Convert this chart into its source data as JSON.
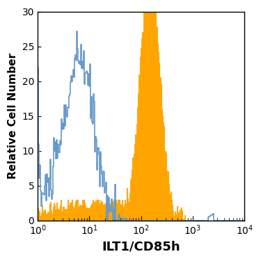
{
  "title": "",
  "xlabel": "ILT1/CD85h",
  "ylabel": "Relative Cell Number",
  "xlim_log": [
    1,
    10000
  ],
  "ylim": [
    0,
    30
  ],
  "yticks": [
    0,
    5,
    10,
    15,
    20,
    25,
    30
  ],
  "background_color": "#ffffff",
  "orange_color": "#FFA500",
  "blue_color": "#6699CC",
  "xlabel_fontsize": 13,
  "ylabel_fontsize": 11,
  "tick_fontsize": 10
}
